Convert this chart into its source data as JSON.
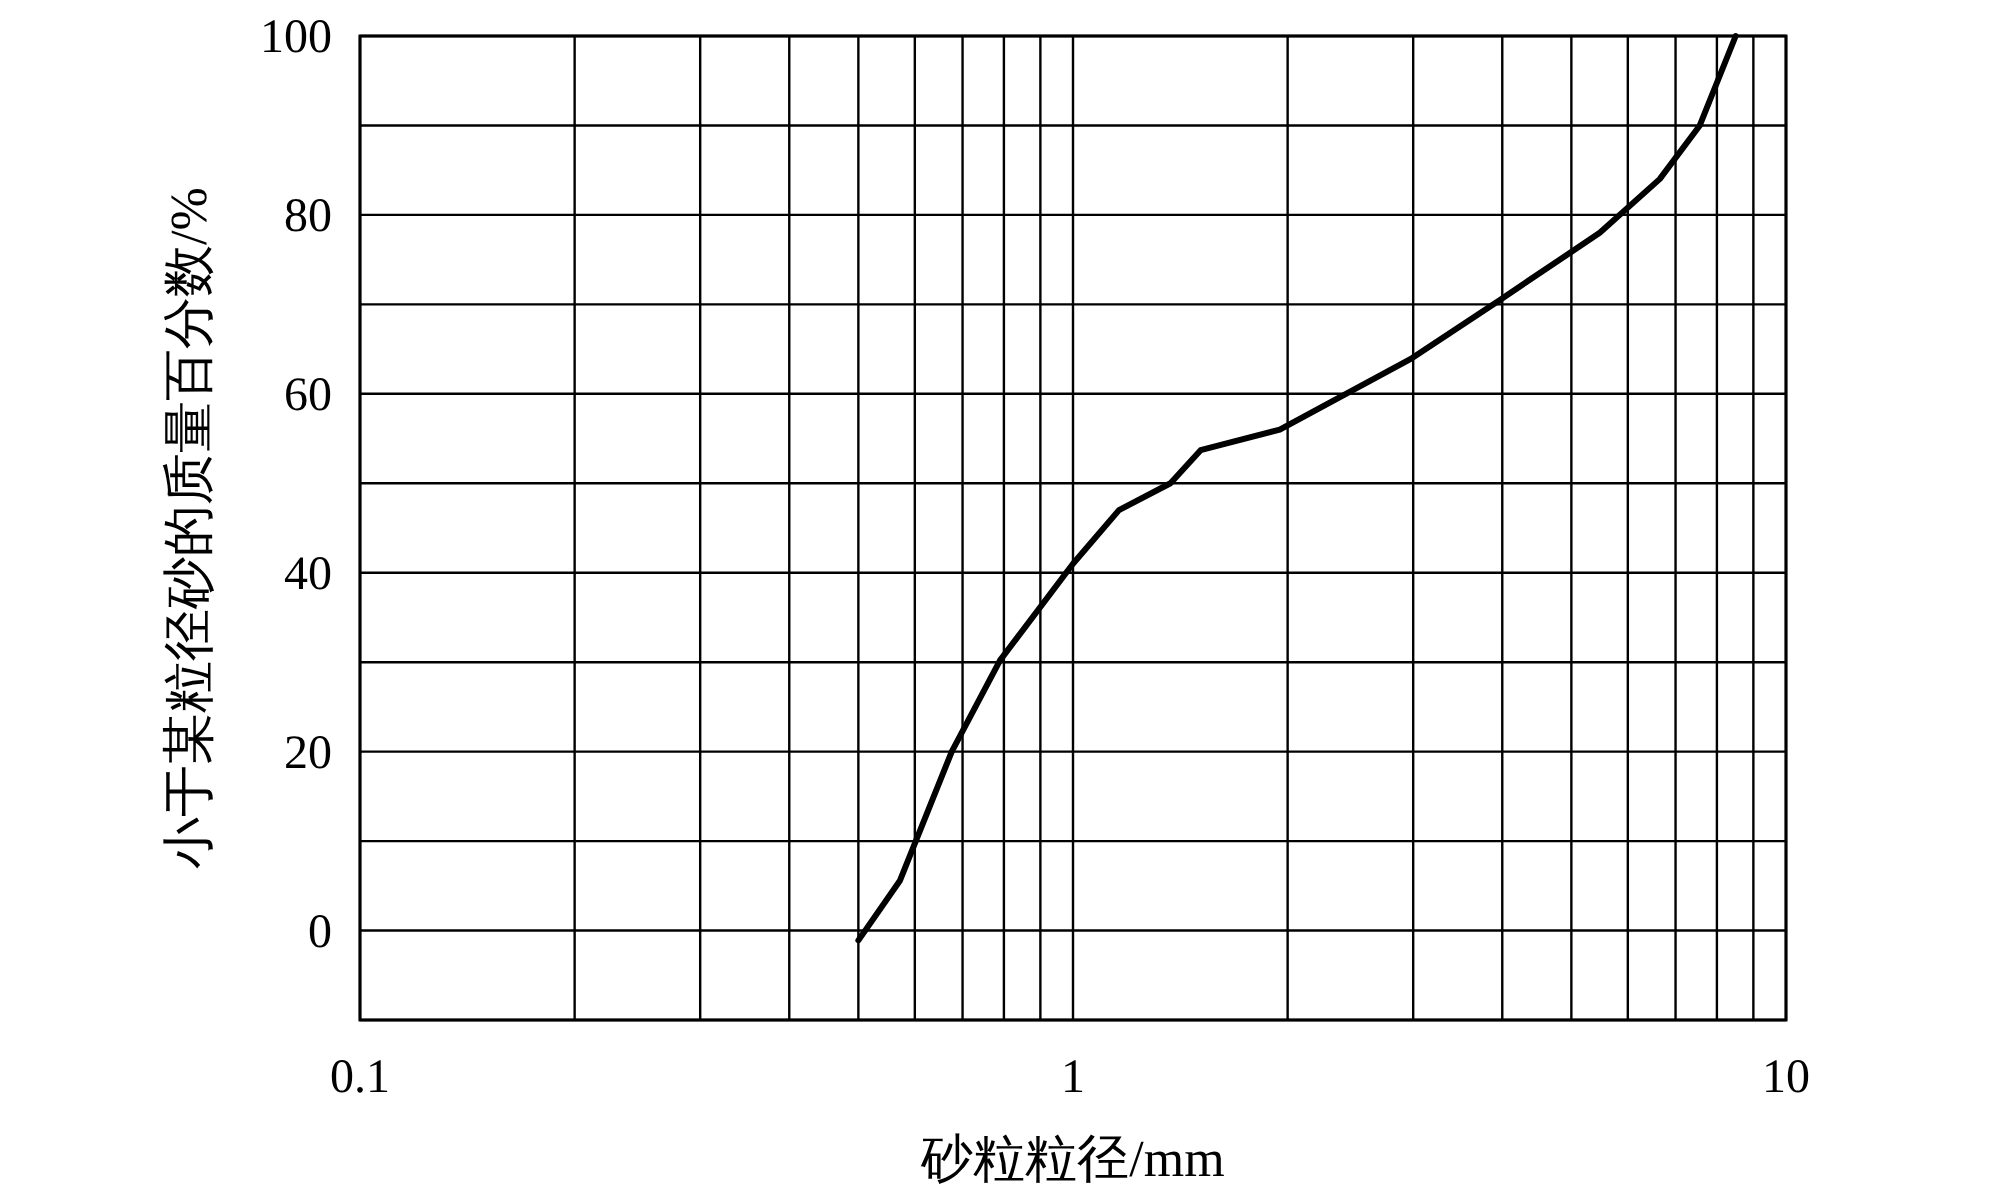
{
  "chart_data": {
    "type": "line",
    "xlabel": "砂粒粒径/mm",
    "ylabel": "小于某粒径砂的质量百分数/%",
    "log": "x",
    "grid": true,
    "line_style": "solid",
    "x": [
      0.5,
      0.572,
      0.676,
      0.79,
      1.0,
      1.16,
      1.37,
      1.51,
      1.95,
      2.99,
      3.97,
      5.48,
      6.65,
      7.57,
      8.5
    ],
    "series": [
      {
        "color": "#000000",
        "values": [
          -1.1,
          5.6,
          20,
          30.2,
          41,
          47,
          50,
          53.7,
          56,
          64,
          70.5,
          78,
          84,
          90,
          100
        ]
      }
    ],
    "xlim": [
      0.1,
      10
    ],
    "ylim": [
      -10,
      100
    ],
    "xticks": [
      0.1,
      {
        "value": 0.2,
        "label": null
      },
      {
        "value": 0.3,
        "label": null
      },
      {
        "value": 0.4,
        "label": null
      },
      {
        "value": 0.5,
        "label": null
      },
      {
        "value": 0.6,
        "label": null
      },
      {
        "value": 0.7,
        "label": null
      },
      {
        "value": 0.8,
        "label": null
      },
      {
        "value": 0.9,
        "label": null
      },
      1,
      {
        "value": 2,
        "label": null
      },
      {
        "value": 3,
        "label": null
      },
      {
        "value": 4,
        "label": null
      },
      {
        "value": 5,
        "label": null
      },
      {
        "value": 6,
        "label": null
      },
      {
        "value": 7,
        "label": null
      },
      {
        "value": 8,
        "label": null
      },
      {
        "value": 9,
        "label": null
      },
      10
    ],
    "yticks": [
      {
        "value": -10,
        "label": null
      },
      0,
      {
        "value": 10,
        "label": null
      },
      20,
      {
        "value": 30,
        "label": null
      },
      40,
      {
        "value": 50,
        "label": null
      },
      60,
      {
        "value": 70,
        "label": null
      },
      80,
      {
        "value": 90,
        "label": null
      },
      100
    ]
  }
}
